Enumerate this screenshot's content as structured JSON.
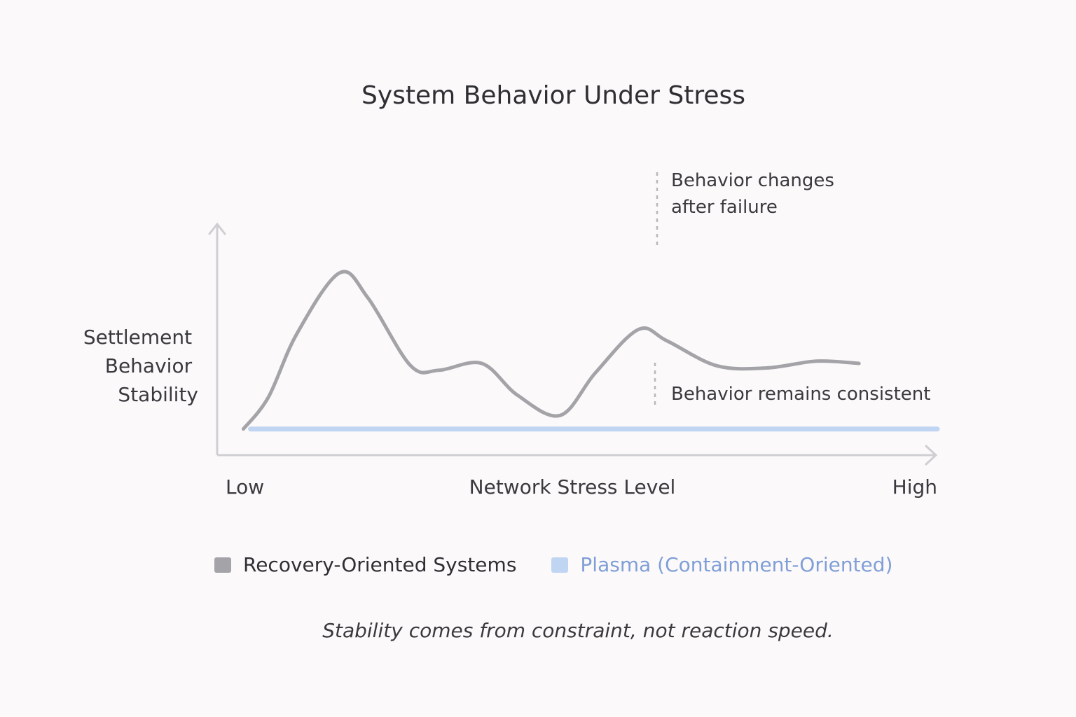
{
  "chart_data": {
    "type": "line",
    "title": "System Behavior Under Stress",
    "xlabel": "Network Stress Level",
    "ylabel_lines": [
      "Settlement",
      "Behavior",
      "Stability"
    ],
    "x_tick_labels": {
      "low": "Low",
      "high": "High"
    },
    "xlim": [
      0,
      10
    ],
    "ylim": [
      0,
      10
    ],
    "grid": false,
    "legend_placement": "bottom",
    "series": [
      {
        "name": "Recovery-Oriented Systems",
        "color": "#a4a4a8",
        "x": [
          0.25,
          0.6,
          1.0,
          1.6,
          2.0,
          2.6,
          3.0,
          3.6,
          4.1,
          4.7,
          5.2,
          5.8,
          6.2,
          6.9,
          7.6,
          8.3,
          8.9
        ],
        "y": [
          1.0,
          2.4,
          5.2,
          7.9,
          6.8,
          3.8,
          3.6,
          3.9,
          2.5,
          1.6,
          3.5,
          5.4,
          4.9,
          3.8,
          3.7,
          4.0,
          3.9
        ]
      },
      {
        "name": "Plasma (Containment-Oriented)",
        "color": "#c0d5f2",
        "x": [
          0.35,
          10
        ],
        "y": [
          1.0,
          1.0
        ]
      }
    ],
    "annotations": [
      {
        "lines": [
          "Behavior changes",
          "after failure"
        ],
        "x": 6.15
      },
      {
        "lines": [
          "Behavior remains consistent"
        ],
        "x": 6.15
      }
    ]
  },
  "legend": {
    "recovery": {
      "label": "Recovery-Oriented Systems",
      "color": "#a4a4a8"
    },
    "plasma": {
      "label": "Plasma (Containment-Oriented)",
      "color": "#c0d5f2",
      "text_color": "#7f9fd6"
    }
  },
  "caption": "Stability comes from constraint, not reaction speed."
}
